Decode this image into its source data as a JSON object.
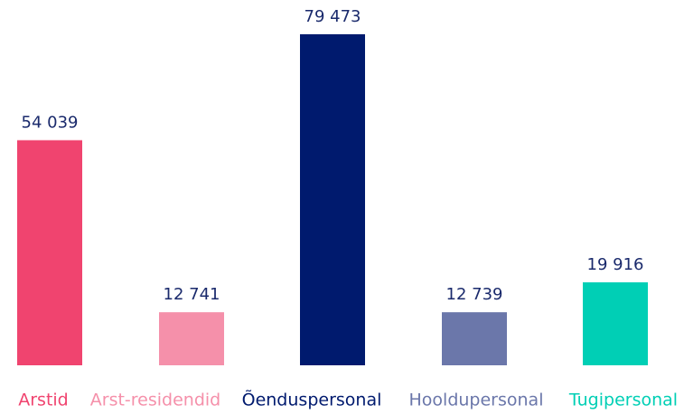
{
  "chart_data": {
    "type": "bar",
    "categories": [
      "Arstid",
      "Arst-residendid",
      "Õenduspersonal",
      "Hooldupersonal",
      "Tugipersonal"
    ],
    "values": [
      54039,
      12741,
      79473,
      12739,
      19916
    ],
    "value_labels": [
      "54 039",
      "12 741",
      "79 473",
      "12 739",
      "19 916"
    ],
    "colors": [
      "#f0446f",
      "#f590aa",
      "#001a6e",
      "#6b77aa",
      "#00cfb5"
    ]
  }
}
